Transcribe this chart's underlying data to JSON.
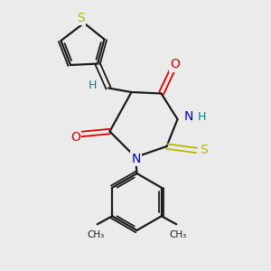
{
  "background_color": "#ebebeb",
  "bond_color": "#1a1a1a",
  "atom_colors": {
    "S_thiophene": "#b8b800",
    "S_thioxo": "#b8b800",
    "O": "#dd0000",
    "N": "#0000cc",
    "H": "#008888",
    "C": "#1a1a1a"
  },
  "figsize": [
    3.0,
    3.0
  ],
  "dpi": 100,
  "xlim": [
    0,
    10
  ],
  "ylim": [
    0,
    10
  ]
}
